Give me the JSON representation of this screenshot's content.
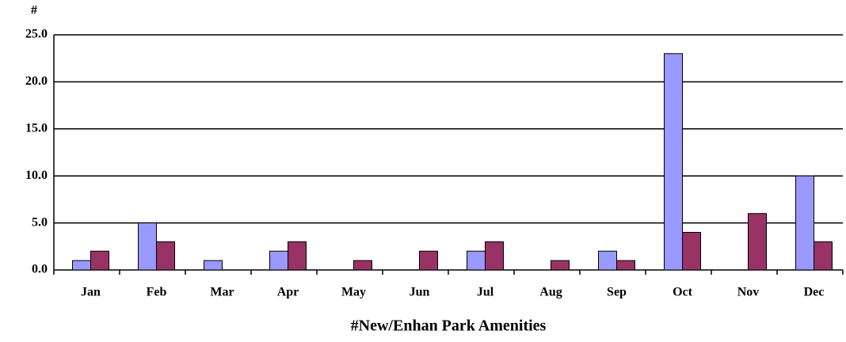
{
  "chart_data": {
    "type": "bar",
    "y_label": "#",
    "x_label": "#New/Enhan Park Amenities",
    "categories": [
      "Jan",
      "Feb",
      "Mar",
      "Apr",
      "May",
      "Jun",
      "Jul",
      "Aug",
      "Sep",
      "Oct",
      "Nov",
      "Dec"
    ],
    "series": [
      {
        "color": "#9999ff",
        "values": [
          1,
          5,
          1,
          2,
          0,
          0,
          2,
          0,
          2,
          23,
          0,
          10
        ]
      },
      {
        "color": "#993366",
        "values": [
          2,
          3,
          0,
          3,
          1,
          2,
          3,
          1,
          1,
          4,
          6,
          3
        ]
      }
    ],
    "ylim": [
      0,
      25
    ],
    "yticks": [
      {
        "value": 0,
        "label": "0.0"
      },
      {
        "value": 5,
        "label": "5.0"
      },
      {
        "value": 10,
        "label": "10.0"
      },
      {
        "value": 15,
        "label": "15.0"
      },
      {
        "value": 20,
        "label": "20.0"
      },
      {
        "value": 25,
        "label": "25.0"
      }
    ],
    "grid": true
  }
}
